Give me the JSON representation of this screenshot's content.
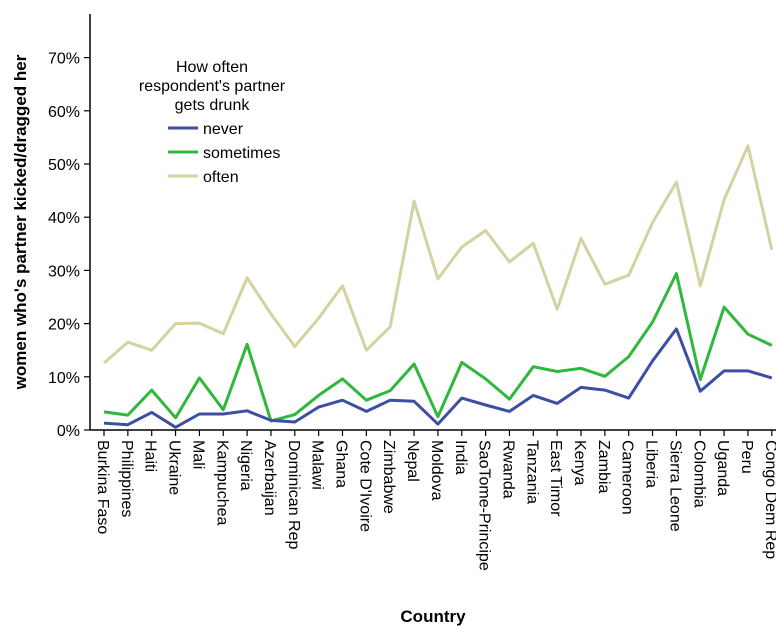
{
  "chart_data": {
    "type": "line",
    "xlabel": "Country",
    "ylabel": "women who's partner kicked/dragged her",
    "ylim": [
      0,
      75
    ],
    "yticks": [
      "0%",
      "10%",
      "20%",
      "30%",
      "40%",
      "50%",
      "60%",
      "70%"
    ],
    "grid": false,
    "legend": {
      "title_lines": [
        "How often",
        "respondent's partner",
        "gets drunk"
      ],
      "placement": "top-left"
    },
    "categories": [
      "Burkina Faso",
      "Philippines",
      "Haiti",
      "Ukraine",
      "Mali",
      "Kampuchea",
      "Nigeria",
      "Azerbaijan",
      "Dominican Rep",
      "Malawi",
      "Ghana",
      "Cote D'Ivoire",
      "Zimbabwe",
      "Nepal",
      "Moldova",
      "India",
      "SaoTome-Principe",
      "Rwanda",
      "Tanzania",
      "East Timor",
      "Kenya",
      "Zambia",
      "Cameroon",
      "Liberia",
      "Sierra Leone",
      "Colombia",
      "Uganda",
      "Peru",
      "Congo Dem Rep"
    ],
    "series": [
      {
        "name": "never",
        "color": "#3c4fa3",
        "values": [
          1.3,
          1.0,
          3.3,
          0.5,
          3.0,
          3.0,
          3.6,
          1.8,
          1.5,
          4.3,
          5.6,
          3.5,
          5.6,
          5.4,
          1.1,
          6.0,
          4.7,
          3.5,
          6.5,
          5.0,
          8.0,
          7.5,
          6.0,
          13.0,
          19.0,
          7.3,
          11.1,
          11.1,
          9.8
        ]
      },
      {
        "name": "sometimes",
        "color": "#2fb83c",
        "values": [
          3.4,
          2.8,
          7.5,
          2.3,
          9.8,
          3.8,
          16.1,
          1.7,
          2.9,
          6.5,
          9.6,
          5.6,
          7.4,
          12.4,
          2.5,
          12.7,
          9.6,
          5.8,
          11.9,
          11.0,
          11.6,
          10.1,
          13.8,
          20.3,
          29.4,
          9.5,
          23.1,
          18.0,
          15.9
        ]
      },
      {
        "name": "often",
        "color": "#d4d2a0",
        "values": [
          12.6,
          16.5,
          15.0,
          20.0,
          20.1,
          18.1,
          28.6,
          21.8,
          15.7,
          21.0,
          27.1,
          15.0,
          19.4,
          43.0,
          28.4,
          34.4,
          37.5,
          31.6,
          35.1,
          22.7,
          36.0,
          27.4,
          29.1,
          39.0,
          46.6,
          27.1,
          43.3,
          53.4,
          33.9
        ]
      }
    ]
  }
}
